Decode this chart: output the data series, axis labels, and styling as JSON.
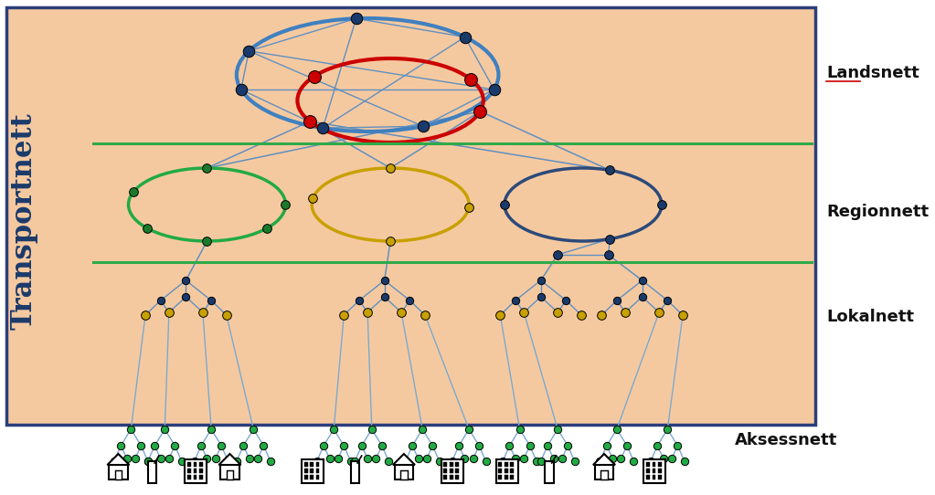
{
  "bg_color": "#F5C9A0",
  "border_color": "#2C3E7A",
  "green_line_color": "#2EAA4A",
  "transportnett_label": "Transportnett",
  "transportnett_color": "#1A3A6B",
  "landsnett_label": "Landsnett",
  "regionnett_label": "Regionnett",
  "lokalnett_label": "Lokalnett",
  "aksessnett_label": "Aksessnett",
  "label_color": "#111111",
  "node_blue": "#1A3A6B",
  "node_red": "#CC0000",
  "node_green": "#1A7A2A",
  "node_yellow": "#C8A000",
  "ellipse_blue": "#4080C0",
  "ellipse_red": "#CC0000",
  "ellipse_green": "#22AA44",
  "ellipse_yellow": "#C8A000",
  "ellipse_darkblue": "#2C4A7A",
  "line_color": "#6090C0",
  "aksess_green": "#22AA44",
  "aksess_line": "#7AAAD0"
}
